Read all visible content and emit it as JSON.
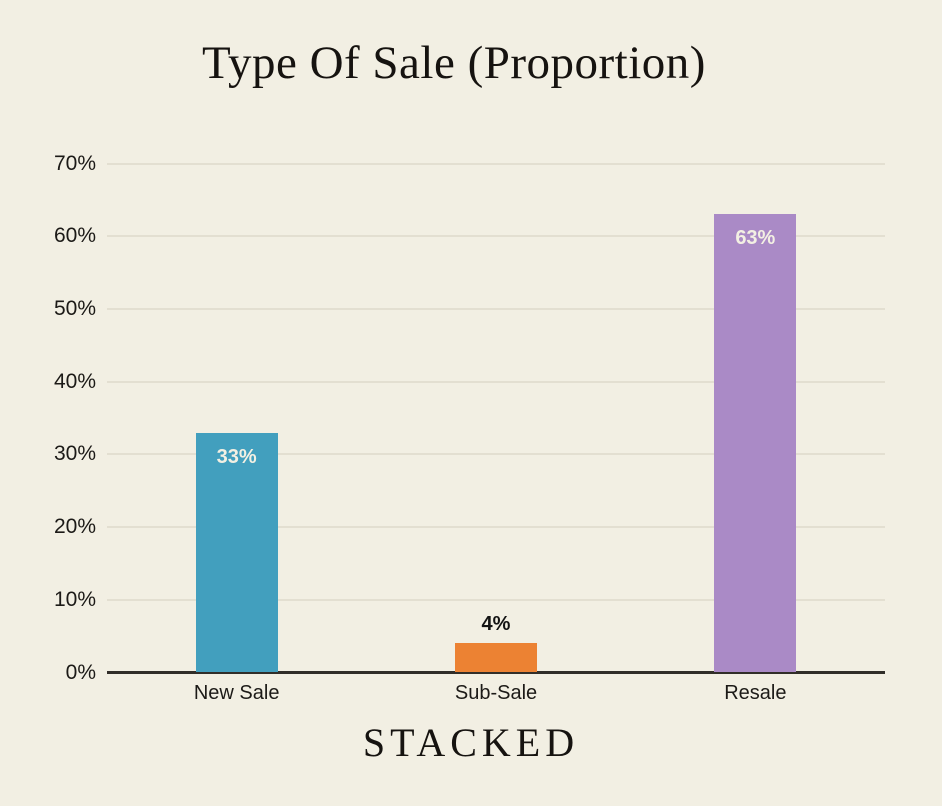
{
  "title": "Type Of Sale (Proportion)",
  "brand": "STACKED",
  "colors": {
    "background": "#F2EFE3",
    "text": "#1C1A17",
    "gridline": "#E3DFD1",
    "axis_line": "#312E29",
    "inside_label": "#F3F0E3",
    "outside_label": "#131313"
  },
  "chart_data": {
    "type": "bar",
    "title": "Type Of Sale (Proportion)",
    "categories": [
      "New Sale",
      "Sub-Sale",
      "Resale"
    ],
    "values": [
      33,
      4,
      63
    ],
    "value_labels": [
      "33%",
      "4%",
      "63%"
    ],
    "bar_colors": [
      "#429FBE",
      "#EC8233",
      "#AA8AC6"
    ],
    "label_placement": [
      "inside",
      "above",
      "inside"
    ],
    "xlabel": "",
    "ylabel": "",
    "ylim": [
      0,
      70
    ],
    "ytick_step": 10,
    "ytick_labels": [
      "0%",
      "10%",
      "20%",
      "30%",
      "40%",
      "50%",
      "60%",
      "70%"
    ],
    "grid": true,
    "legend": "none"
  }
}
